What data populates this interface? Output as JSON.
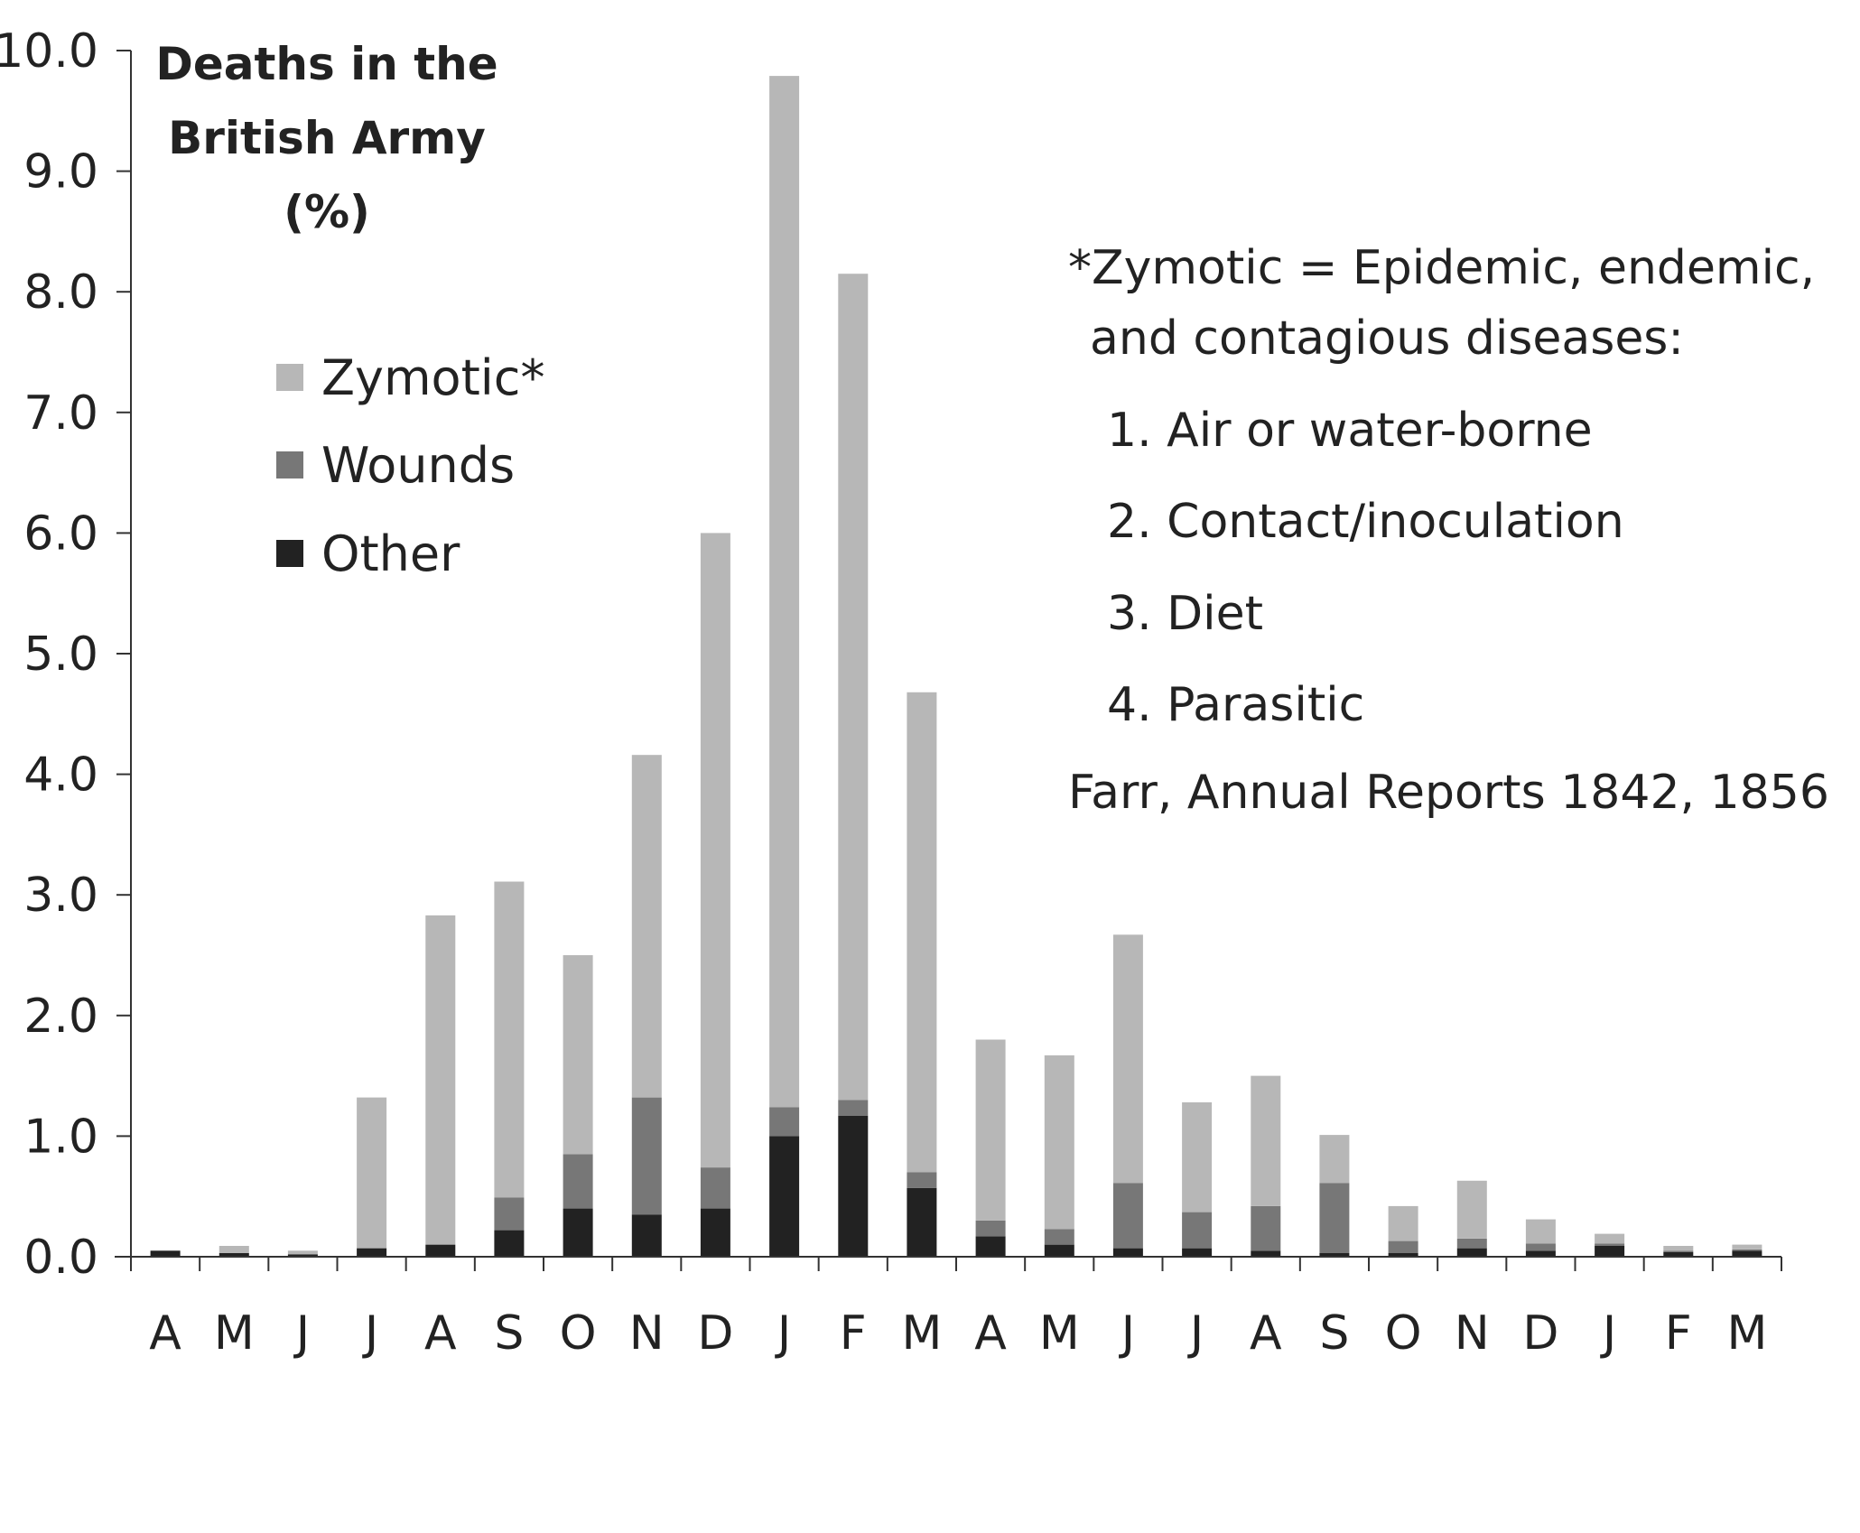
{
  "chart_data": {
    "type": "bar",
    "stacked": true,
    "title_lines": [
      "Deaths in the",
      "British Army",
      "(%)"
    ],
    "categories": [
      "A",
      "M",
      "J",
      "J",
      "A",
      "S",
      "O",
      "N",
      "D",
      "J",
      "F",
      "M",
      "A",
      "M",
      "J",
      "J",
      "A",
      "S",
      "O",
      "N",
      "D",
      "J",
      "F",
      "M"
    ],
    "series": [
      {
        "name": "Other",
        "color": "#222222",
        "values": [
          0.05,
          0.03,
          0.02,
          0.07,
          0.1,
          0.22,
          0.4,
          0.35,
          0.4,
          1.0,
          1.17,
          0.57,
          0.17,
          0.1,
          0.07,
          0.07,
          0.05,
          0.03,
          0.03,
          0.07,
          0.05,
          0.09,
          0.04,
          0.05
        ]
      },
      {
        "name": "Wounds",
        "color": "#777777",
        "values": [
          0.0,
          0.0,
          0.0,
          0.0,
          0.0,
          0.27,
          0.45,
          0.97,
          0.34,
          0.24,
          0.13,
          0.13,
          0.13,
          0.13,
          0.54,
          0.3,
          0.37,
          0.58,
          0.1,
          0.08,
          0.06,
          0.02,
          0.01,
          0.01
        ]
      },
      {
        "name": "Zymotic*",
        "color": "#b7b7b7",
        "values": [
          0.0,
          0.06,
          0.03,
          1.25,
          2.73,
          2.62,
          1.65,
          2.84,
          5.26,
          8.55,
          6.85,
          3.98,
          1.5,
          1.44,
          2.06,
          0.91,
          1.08,
          0.4,
          0.29,
          0.48,
          0.2,
          0.08,
          0.04,
          0.04
        ]
      }
    ],
    "ylim": [
      0,
      10
    ],
    "yticks": [
      "0.0",
      "1.0",
      "2.0",
      "3.0",
      "4.0",
      "5.0",
      "6.0",
      "7.0",
      "8.0",
      "9.0",
      "10.0"
    ],
    "grid": false,
    "legend_order": [
      "Zymotic*",
      "Wounds",
      "Other"
    ],
    "legend_position": "top-left",
    "annotation_lines": [
      "*Zymotic = Epidemic, endemic,",
      "and contagious diseases:",
      "1. Air or water-borne",
      "2. Contact/inoculation",
      "3. Diet",
      "4. Parasitic",
      "Farr, Annual Reports 1842, 1856"
    ]
  }
}
